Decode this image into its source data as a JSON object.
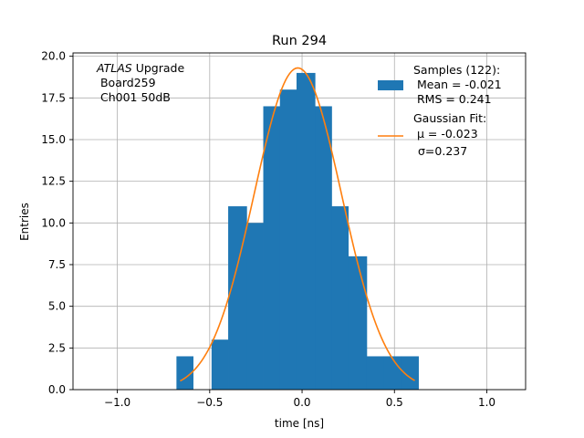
{
  "chart_data": {
    "type": "bar",
    "title": "Run 294",
    "xlabel": "time [ns]",
    "ylabel": "Entries",
    "xlim": [
      -1.24,
      1.21
    ],
    "ylim": [
      0,
      20.2
    ],
    "grid": true,
    "x_ticks": [
      -1.0,
      -0.5,
      0.0,
      0.5,
      1.0
    ],
    "x_tick_labels": [
      "−1.0",
      "−0.5",
      "0.0",
      "0.5",
      "1.0"
    ],
    "y_ticks": [
      0.0,
      2.5,
      5.0,
      7.5,
      10.0,
      12.5,
      15.0,
      17.5,
      20.0
    ],
    "y_tick_labels": [
      "0.0",
      "2.5",
      "5.0",
      "7.5",
      "10.0",
      "12.5",
      "15.0",
      "17.5",
      "20.0"
    ],
    "histogram": {
      "name": "Samples (122):",
      "color": "#1f77b4",
      "bin_edges": [
        -0.68,
        -0.59,
        -0.49,
        -0.4,
        -0.3,
        -0.21,
        -0.12,
        -0.03,
        0.07,
        0.16,
        0.25,
        0.35,
        0.44,
        0.54,
        0.63
      ],
      "counts": [
        2,
        0,
        3,
        11,
        10,
        17,
        18,
        19,
        17,
        11,
        8,
        2,
        2,
        2
      ]
    },
    "fit": {
      "name": "Gaussian Fit:",
      "color": "#ff7f0e",
      "mu": -0.023,
      "sigma": 0.237,
      "amplitude": 19.3,
      "x_range": [
        -0.66,
        0.61
      ]
    },
    "legend": {
      "placement": "upper right",
      "samples_lines": [
        "Samples (122):",
        " Mean = -0.021",
        " RMS = 0.241"
      ],
      "fit_lines": [
        "Gaussian Fit:",
        " μ = -0.023",
        "σ=0.237"
      ]
    },
    "annotation": {
      "lines": [
        "ATLAS Upgrade",
        " Board259",
        " Ch001 50dB"
      ]
    }
  }
}
